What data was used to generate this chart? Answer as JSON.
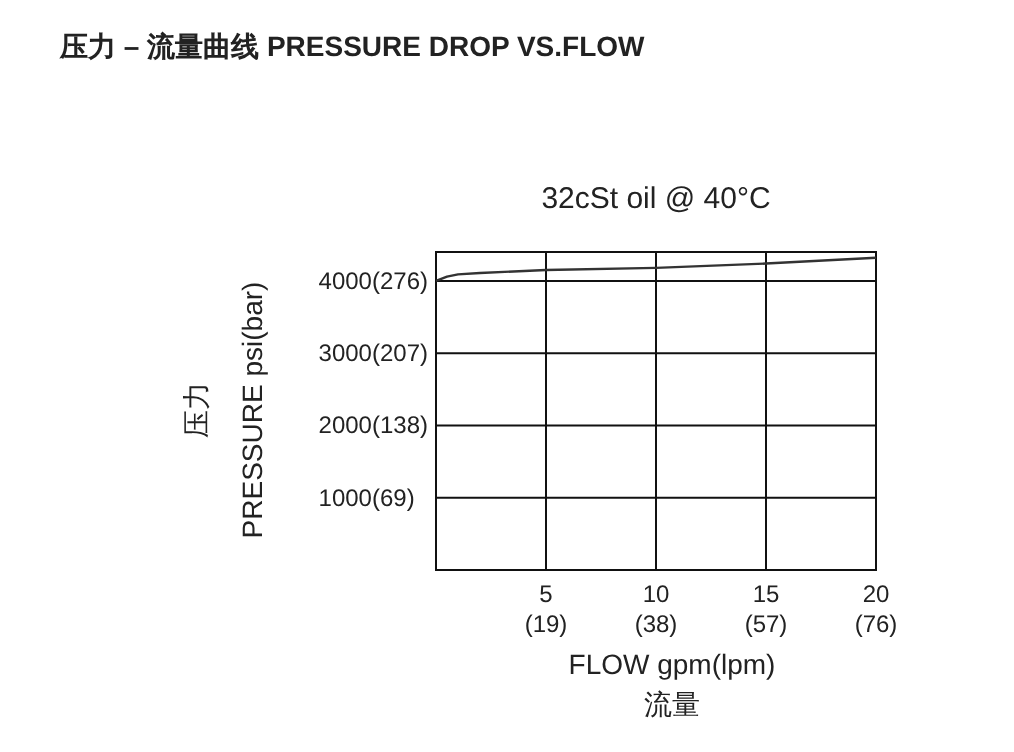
{
  "chart_data": {
    "type": "line",
    "title": "压力 – 流量曲线 PRESSURE DROP VS.FLOW",
    "subtitle": "32cSt oil @ 40°C",
    "xlabel": "FLOW gpm(lpm)\n流量",
    "ylabel": "压力\nPRESSURE   psi(bar)",
    "x": [
      0,
      0.5,
      1,
      2,
      5,
      10,
      15,
      20
    ],
    "series": [
      {
        "color": "#333333",
        "values": [
          4000,
          4060,
          4090,
          4110,
          4150,
          4180,
          4240,
          4320
        ]
      }
    ],
    "xlim": [
      0,
      20
    ],
    "xticks": [
      5,
      10,
      15,
      20
    ],
    "x2lim": [
      0,
      76
    ],
    "x2ticks": [
      {
        "value": 19,
        "label": "(19)"
      },
      {
        "value": 38,
        "label": "(38)"
      },
      {
        "value": 57,
        "label": "(57)"
      },
      {
        "value": 76,
        "label": "(76)"
      }
    ],
    "ylim": [
      0,
      4400
    ],
    "yticks": [
      1000,
      2000,
      3000,
      4000
    ],
    "y2lim": [
      0,
      303.6
    ],
    "y2ticks": [
      {
        "value": 69,
        "label": "(69)"
      },
      {
        "value": 138,
        "label": "(138)"
      },
      {
        "value": 207,
        "label": "(207)"
      },
      {
        "value": 276,
        "label": "(276)"
      }
    ],
    "grid": true,
    "marker": "none",
    "line_style": "solid"
  }
}
